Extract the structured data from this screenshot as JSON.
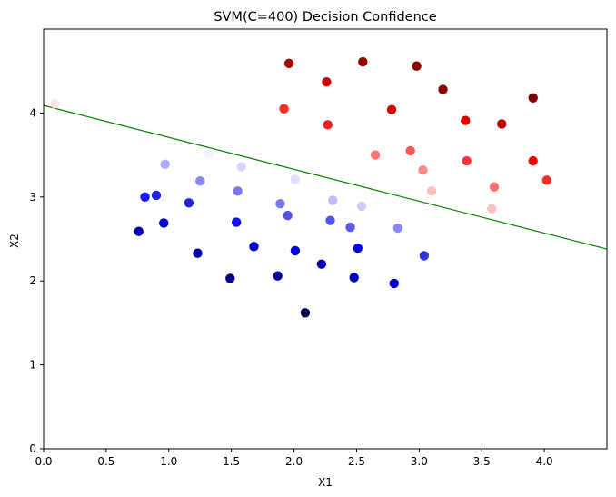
{
  "chart_data": {
    "type": "scatter",
    "title": "SVM(C=400) Decision Confidence",
    "xlabel": "X1",
    "ylabel": "X2",
    "xlim": [
      0,
      4.5
    ],
    "ylim": [
      0,
      5.0
    ],
    "xticks": [
      "0.0",
      "0.5",
      "1.0",
      "1.5",
      "2.0",
      "2.5",
      "3.0",
      "3.5",
      "4.0"
    ],
    "yticks": [
      "0",
      "1",
      "2",
      "3",
      "4"
    ],
    "grid": false,
    "decision_boundary": {
      "color": "#008000",
      "points": [
        [
          0.0,
          4.09
        ],
        [
          4.5,
          2.38
        ]
      ]
    },
    "points": [
      {
        "x": 0.09,
        "y": 4.11,
        "color": "#ffe6e6"
      },
      {
        "x": 1.96,
        "y": 4.59,
        "color": "#aa0000"
      },
      {
        "x": 2.55,
        "y": 4.61,
        "color": "#990000"
      },
      {
        "x": 2.98,
        "y": 4.56,
        "color": "#880000"
      },
      {
        "x": 3.19,
        "y": 4.28,
        "color": "#8b0000"
      },
      {
        "x": 3.91,
        "y": 4.18,
        "color": "#7a0000"
      },
      {
        "x": 2.26,
        "y": 4.37,
        "color": "#cc0000"
      },
      {
        "x": 1.92,
        "y": 4.05,
        "color": "#ff2a2a"
      },
      {
        "x": 2.78,
        "y": 4.04,
        "color": "#dd0000"
      },
      {
        "x": 2.27,
        "y": 3.86,
        "color": "#ee2222"
      },
      {
        "x": 3.37,
        "y": 3.91,
        "color": "#dd0000"
      },
      {
        "x": 3.66,
        "y": 3.87,
        "color": "#bb0000"
      },
      {
        "x": 2.93,
        "y": 3.55,
        "color": "#ff5555"
      },
      {
        "x": 2.65,
        "y": 3.5,
        "color": "#ff7777"
      },
      {
        "x": 3.38,
        "y": 3.43,
        "color": "#ff3333"
      },
      {
        "x": 3.91,
        "y": 3.43,
        "color": "#ee0000"
      },
      {
        "x": 3.03,
        "y": 3.32,
        "color": "#ff8888"
      },
      {
        "x": 4.02,
        "y": 3.2,
        "color": "#ff2a2a"
      },
      {
        "x": 3.6,
        "y": 3.12,
        "color": "#ff7070"
      },
      {
        "x": 3.1,
        "y": 3.07,
        "color": "#ffc0c0"
      },
      {
        "x": 3.58,
        "y": 2.86,
        "color": "#ffc2c2"
      },
      {
        "x": 1.32,
        "y": 3.51,
        "color": "#f4f4ff"
      },
      {
        "x": 0.97,
        "y": 3.39,
        "color": "#aaaaff"
      },
      {
        "x": 1.58,
        "y": 3.36,
        "color": "#d6d6ff"
      },
      {
        "x": 2.01,
        "y": 3.21,
        "color": "#e0e0ff"
      },
      {
        "x": 1.25,
        "y": 3.19,
        "color": "#8888ee"
      },
      {
        "x": 1.55,
        "y": 3.07,
        "color": "#7777ee"
      },
      {
        "x": 0.81,
        "y": 3.0,
        "color": "#1a1aee"
      },
      {
        "x": 0.9,
        "y": 3.02,
        "color": "#2222ee"
      },
      {
        "x": 2.31,
        "y": 2.96,
        "color": "#bbbbff"
      },
      {
        "x": 1.16,
        "y": 2.93,
        "color": "#2222dd"
      },
      {
        "x": 1.89,
        "y": 2.92,
        "color": "#7777ee"
      },
      {
        "x": 2.54,
        "y": 2.89,
        "color": "#ccccff"
      },
      {
        "x": 1.95,
        "y": 2.78,
        "color": "#5555dd"
      },
      {
        "x": 2.29,
        "y": 2.72,
        "color": "#5555ee"
      },
      {
        "x": 1.54,
        "y": 2.7,
        "color": "#1111ee"
      },
      {
        "x": 0.96,
        "y": 2.69,
        "color": "#0000cc"
      },
      {
        "x": 2.45,
        "y": 2.64,
        "color": "#5a5ae0"
      },
      {
        "x": 2.83,
        "y": 2.63,
        "color": "#8888ee"
      },
      {
        "x": 0.76,
        "y": 2.59,
        "color": "#0000aa"
      },
      {
        "x": 1.68,
        "y": 2.41,
        "color": "#0000cc"
      },
      {
        "x": 2.51,
        "y": 2.39,
        "color": "#0000ee"
      },
      {
        "x": 2.01,
        "y": 2.36,
        "color": "#0000dd"
      },
      {
        "x": 1.23,
        "y": 2.33,
        "color": "#0000aa"
      },
      {
        "x": 3.04,
        "y": 2.3,
        "color": "#3333dd"
      },
      {
        "x": 2.22,
        "y": 2.2,
        "color": "#0000bb"
      },
      {
        "x": 1.87,
        "y": 2.06,
        "color": "#00009a"
      },
      {
        "x": 2.48,
        "y": 2.04,
        "color": "#0000bb"
      },
      {
        "x": 1.49,
        "y": 2.03,
        "color": "#000088"
      },
      {
        "x": 2.8,
        "y": 1.97,
        "color": "#0000cc"
      },
      {
        "x": 2.09,
        "y": 1.62,
        "color": "#000044"
      }
    ]
  }
}
